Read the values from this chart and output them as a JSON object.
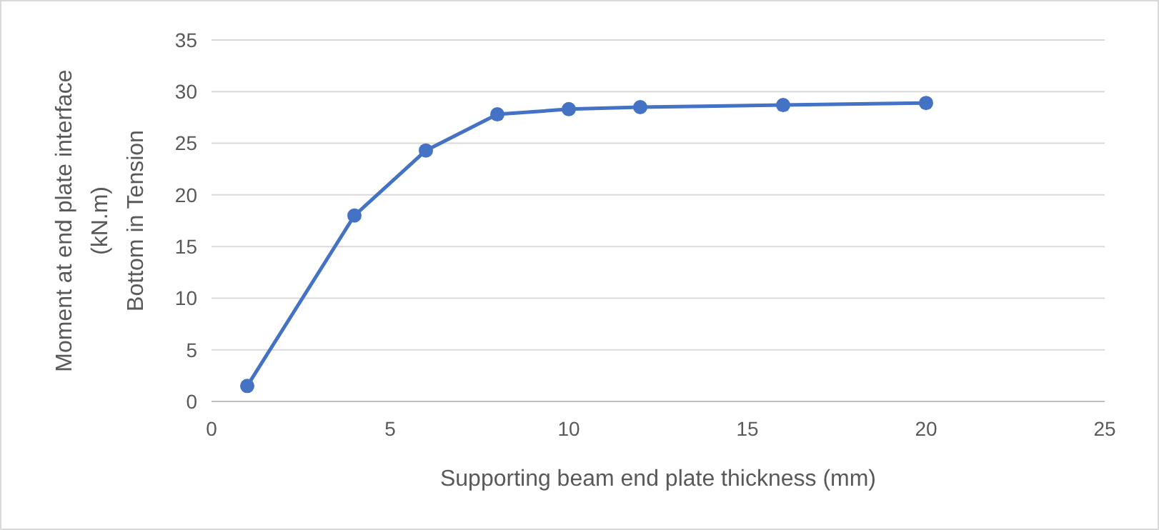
{
  "chart_data": {
    "type": "line",
    "xlabel": "Supporting beam end plate thickness (mm)",
    "ylabel": "Moment at end plate interface\n(kN.m)\nBottom in Tension",
    "x": [
      1,
      4,
      6,
      8,
      10,
      12,
      16,
      20
    ],
    "series": [
      {
        "color": "#4472c4",
        "values": [
          1.5,
          18,
          24.3,
          27.8,
          28.3,
          28.5,
          28.7,
          28.9
        ]
      }
    ],
    "xlim": [
      0,
      25
    ],
    "xticks": [
      0,
      5,
      10,
      15,
      20,
      25
    ],
    "ylim": [
      0,
      35
    ],
    "yticks": [
      0,
      5,
      10,
      15,
      20,
      25,
      30,
      35
    ],
    "grid": "y",
    "marker": "circle",
    "line_style": "solid"
  }
}
